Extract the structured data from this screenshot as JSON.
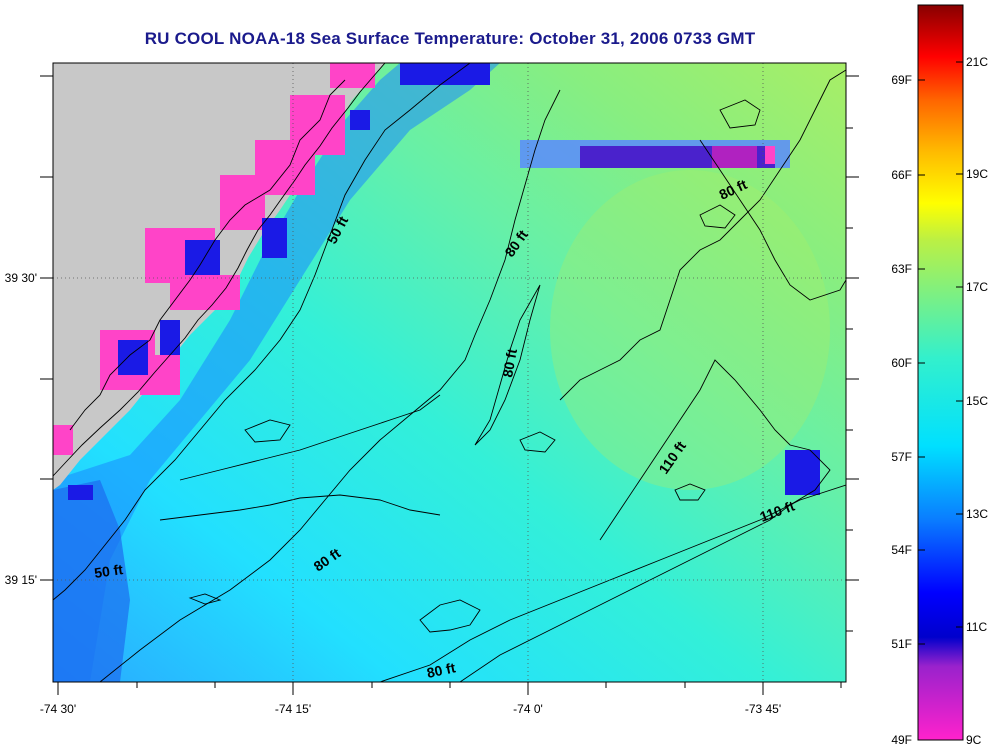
{
  "title": "RU COOL  NOAA-18  Sea Surface Temperature:  October 31, 2006 0733 GMT",
  "map": {
    "lon_labels": [
      "-74 30'",
      "-74 15'",
      "-74 0'",
      "-73 45'"
    ],
    "lat_labels": [
      "39 30'",
      "39 15'"
    ],
    "contour_labels": [
      "50 ft",
      "50 ft",
      "80 ft",
      "80 ft",
      "80 ft",
      "80 ft",
      "80 ft",
      "110 ft",
      "110 ft"
    ],
    "colors": {
      "land": "#c8c8c8",
      "cloud": "#ff44c8",
      "coastline": "#000000"
    }
  },
  "colorbar": {
    "fahrenheit_labels": [
      "69F",
      "66F",
      "63F",
      "60F",
      "57F",
      "54F",
      "51F",
      "49F"
    ],
    "celsius_labels": [
      "21C",
      "19C",
      "17C",
      "15C",
      "13C",
      "11C",
      "9C"
    ],
    "range_c": [
      9,
      22
    ]
  }
}
